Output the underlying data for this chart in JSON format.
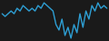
{
  "values": [
    0,
    -1,
    0,
    1,
    0,
    2,
    1,
    3,
    2,
    1,
    2,
    1,
    3,
    2,
    4,
    3,
    2,
    1,
    -4,
    -6,
    -2,
    -8,
    -5,
    -9,
    -4,
    -7,
    0,
    -5,
    1,
    -2,
    3,
    1,
    4,
    2,
    3,
    2
  ],
  "line_color": "#2e9fd4",
  "line_width": 1.0,
  "background_color": "#1a1a1a"
}
